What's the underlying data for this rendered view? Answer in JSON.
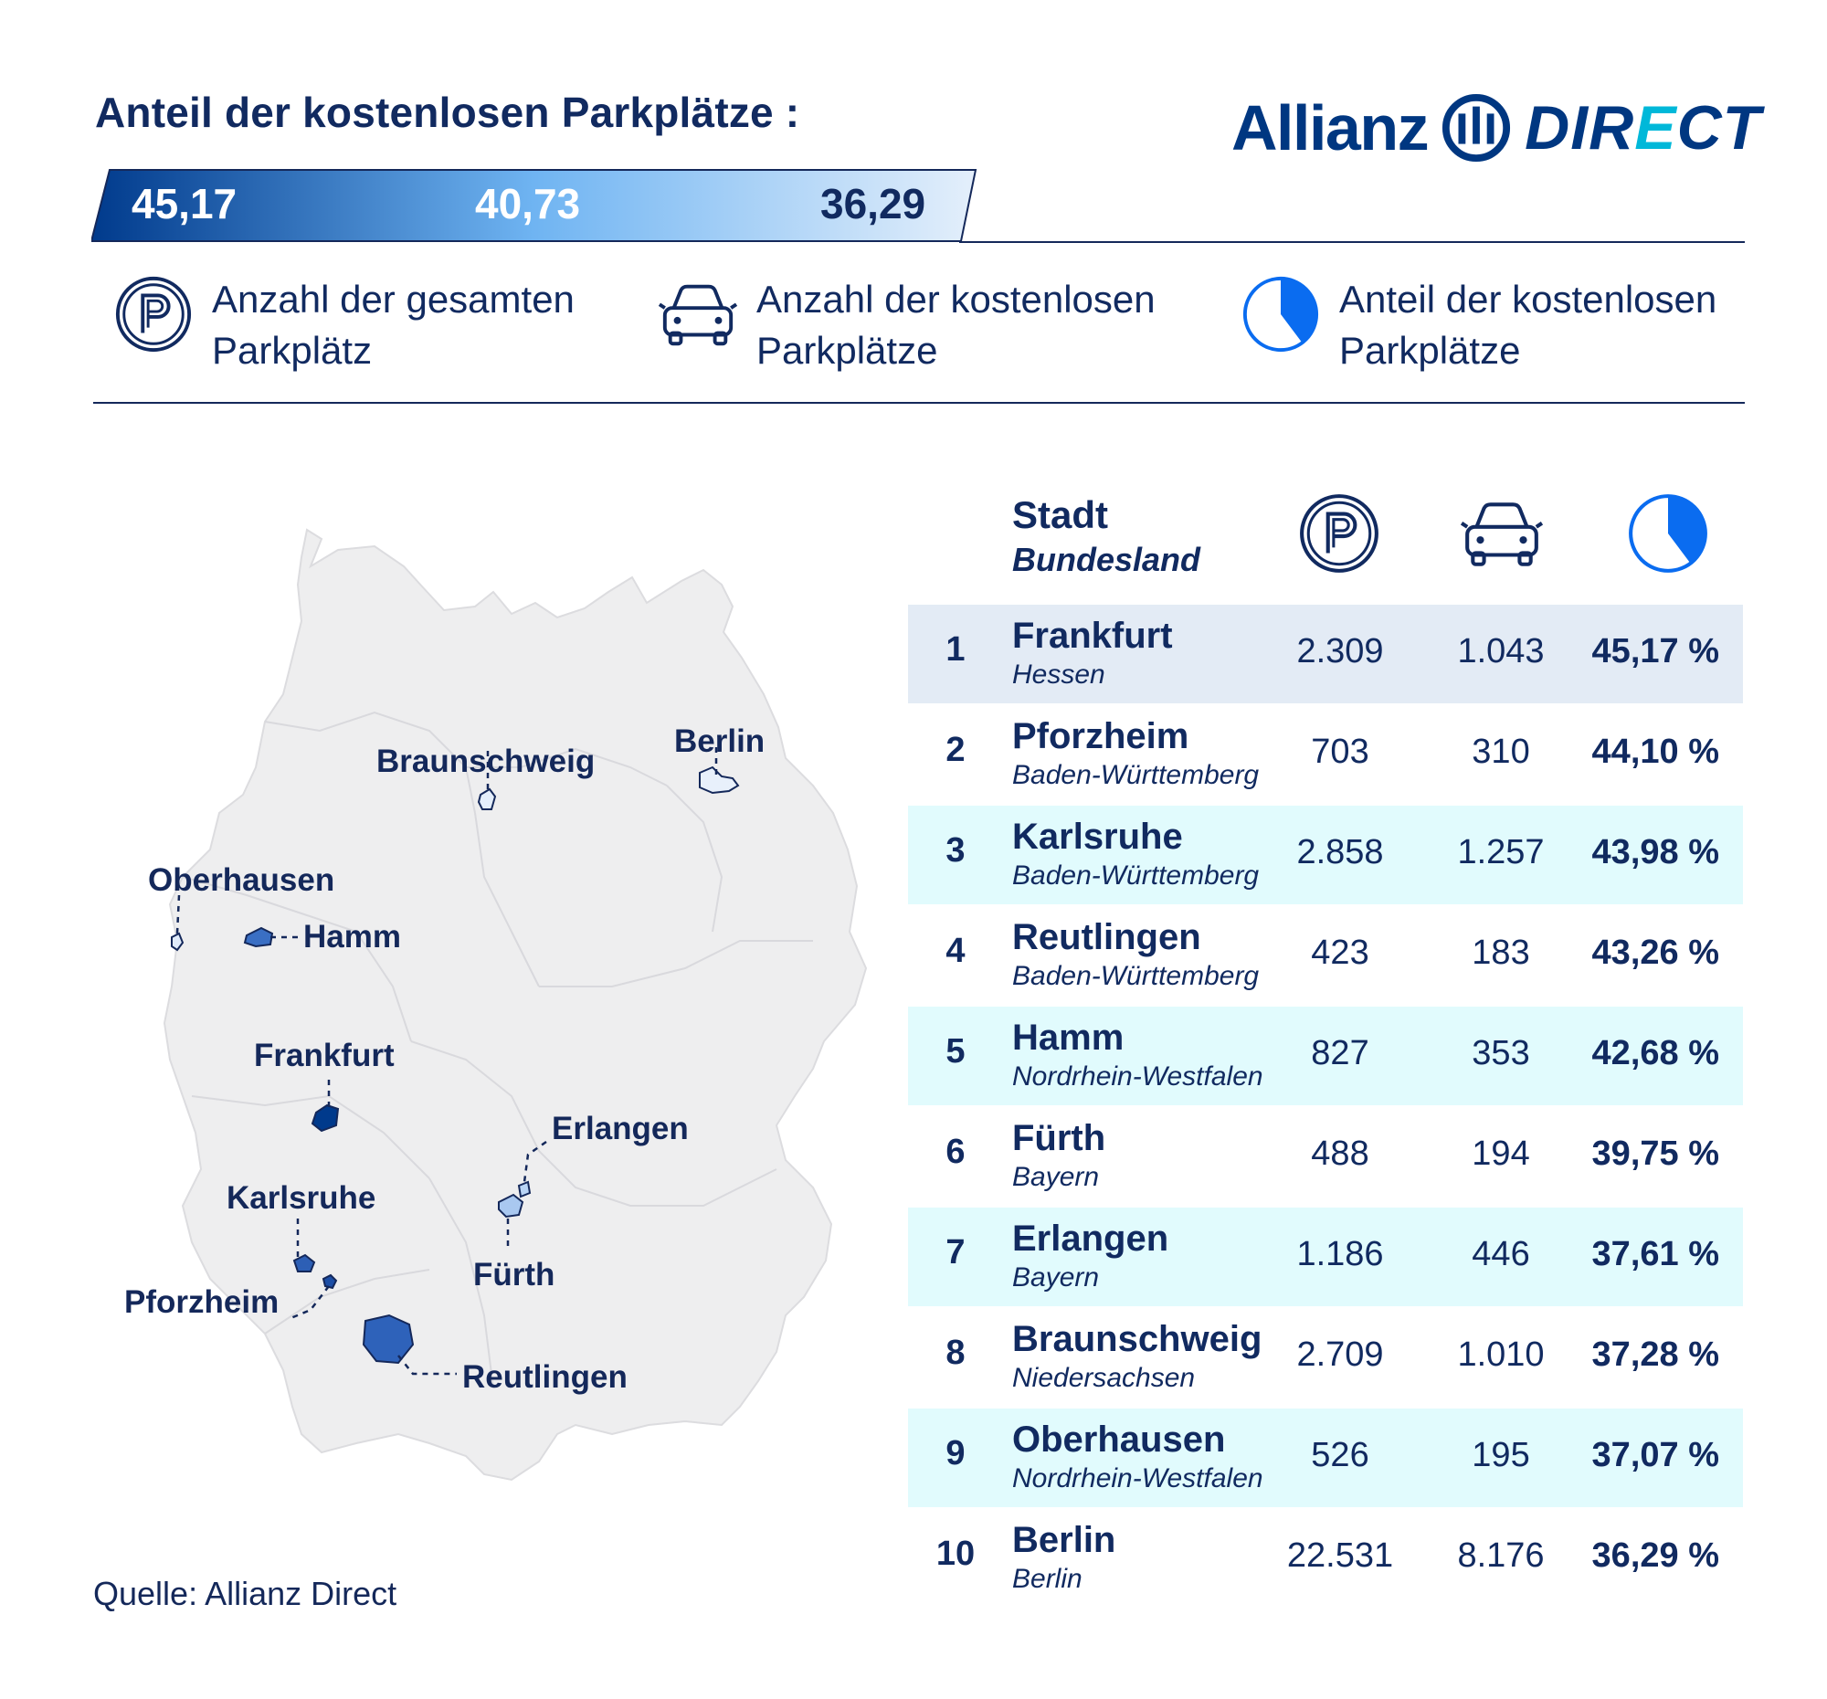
{
  "title": "Anteil der kostenlosen Parkplätze :",
  "brand": {
    "name_part1": "Allianz",
    "name_part2": "DIRECT"
  },
  "scale": {
    "labels": [
      "45,17",
      "40,73",
      "36,29"
    ],
    "colors": [
      "#003a8c",
      "#6fb4f2",
      "#e4effb"
    ]
  },
  "legend": [
    {
      "icon": "parking-icon",
      "text": "Anzahl der gesamten Parkplätz"
    },
    {
      "icon": "car-icon",
      "text": "Anzahl der kostenlosen Parkplätze"
    },
    {
      "icon": "pie-share-icon",
      "text": "Anteil der kostenlosen Parkplätze"
    }
  ],
  "map": {
    "country_color": "#eeeeef",
    "cities": [
      {
        "label": "Berlin",
        "color": "#e8f0fb"
      },
      {
        "label": "Braunschweig",
        "color": "#e4eefb"
      },
      {
        "label": "Oberhausen",
        "color": "#e0ebfa"
      },
      {
        "label": "Hamm",
        "color": "#3a6fc4"
      },
      {
        "label": "Frankfurt",
        "color": "#003a8c"
      },
      {
        "label": "Erlangen",
        "color": "#b9d4f5"
      },
      {
        "label": "Fürth",
        "color": "#a9c8f0"
      },
      {
        "label": "Karlsruhe",
        "color": "#2d5fb5"
      },
      {
        "label": "Pforzheim",
        "color": "#1c4ea6"
      },
      {
        "label": "Reutlingen",
        "color": "#2e62ba"
      }
    ]
  },
  "table": {
    "header": {
      "city": "Stadt",
      "state": "Bundesland"
    },
    "rows": [
      {
        "rank": "1",
        "city": "Frankfurt",
        "state": "Hessen",
        "total": "2.309",
        "free": "1.043",
        "share": "45,17 %",
        "bg": "#e3ebf5"
      },
      {
        "rank": "2",
        "city": "Pforzheim",
        "state": "Baden-Württemberg",
        "total": "703",
        "free": "310",
        "share": "44,10 %",
        "bg": "#ffffff"
      },
      {
        "rank": "3",
        "city": "Karlsruhe",
        "state": "Baden-Württemberg",
        "total": "2.858",
        "free": "1.257",
        "share": "43,98 %",
        "bg": "#e1fbfd"
      },
      {
        "rank": "4",
        "city": "Reutlingen",
        "state": "Baden-Württemberg",
        "total": "423",
        "free": "183",
        "share": "43,26 %",
        "bg": "#ffffff"
      },
      {
        "rank": "5",
        "city": "Hamm",
        "state": "Nordrhein-Westfalen",
        "total": "827",
        "free": "353",
        "share": "42,68 %",
        "bg": "#e1fbfd"
      },
      {
        "rank": "6",
        "city": "Fürth",
        "state": "Bayern",
        "total": "488",
        "free": "194",
        "share": "39,75 %",
        "bg": "#ffffff"
      },
      {
        "rank": "7",
        "city": "Erlangen",
        "state": "Bayern",
        "total": "1.186",
        "free": "446",
        "share": "37,61 %",
        "bg": "#e1fbfd"
      },
      {
        "rank": "8",
        "city": "Braunschweig",
        "state": "Niedersachsen",
        "total": "2.709",
        "free": "1.010",
        "share": "37,28 %",
        "bg": "#ffffff"
      },
      {
        "rank": "9",
        "city": "Oberhausen",
        "state": "Nordrhein-Westfalen",
        "total": "526",
        "free": "195",
        "share": "37,07 %",
        "bg": "#e1fbfd"
      },
      {
        "rank": "10",
        "city": "Berlin",
        "state": "Berlin",
        "total": "22.531",
        "free": "8.176",
        "share": "36,29 %",
        "bg": "#ffffff"
      }
    ]
  },
  "source": "Quelle: Allianz Direct"
}
